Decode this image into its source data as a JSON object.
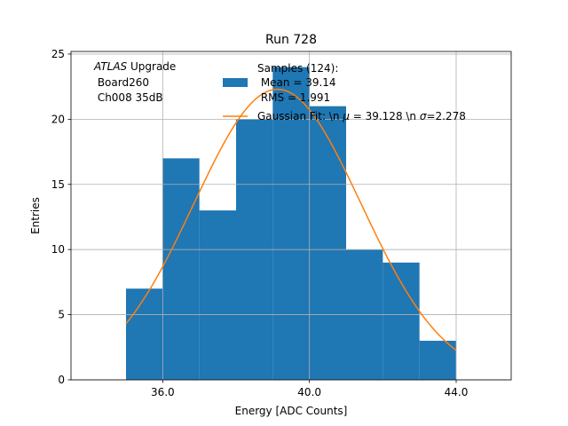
{
  "chart_data": {
    "type": "bar",
    "title": "Run 728",
    "xlabel": "Energy [ADC Counts]",
    "ylabel": "Entries",
    "xlim": [
      33.5,
      45.5
    ],
    "ylim": [
      0,
      25.2
    ],
    "grid": true,
    "bin_edges": [
      35,
      36,
      37,
      38,
      39,
      40,
      41,
      42,
      43,
      44
    ],
    "counts": [
      7,
      17,
      13,
      20,
      24,
      21,
      10,
      9,
      3
    ],
    "histogram_color": "#1f77b4",
    "fit_color": "#ff7f0e",
    "gaussian_fit": {
      "amplitude": 22.3,
      "mu": 39.128,
      "sigma": 2.278,
      "x_range": [
        35,
        44
      ]
    },
    "xticks": [
      36,
      40,
      44
    ],
    "xtick_labels": [
      "36.0",
      "40.0",
      "44.0"
    ],
    "yticks": [
      0,
      5,
      10,
      15,
      20,
      25
    ],
    "ytick_labels": [
      "0",
      "5",
      "10",
      "15",
      "20",
      "25"
    ],
    "annotation": {
      "italic": "ATLAS",
      "rest": " Upgrade",
      "line2": " Board260",
      "line3": " Ch008 35dB"
    },
    "legend": {
      "position": "top-center",
      "samples_line1": "Samples (124):",
      "samples_line2": " Mean = 39.14",
      "samples_line3": " RMS = 1.991",
      "fit_part1": "Gaussian Fit: \\n ",
      "fit_mu": "μ",
      "fit_part2": " = 39.128 \\n ",
      "fit_sigma": "σ",
      "fit_part3": "=2.278"
    }
  }
}
